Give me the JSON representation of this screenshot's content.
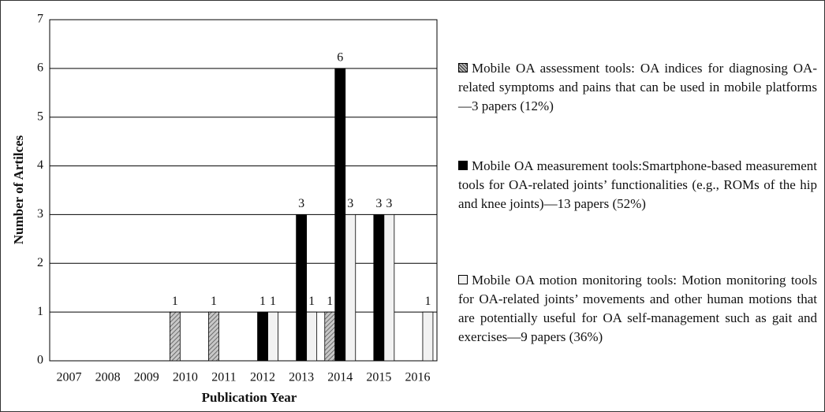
{
  "chart_data": {
    "type": "bar",
    "x_label": "Publication Year",
    "y_label": "Number of Artilces",
    "categories": [
      "2007",
      "2008",
      "2009",
      "2010",
      "2011",
      "2012",
      "2013",
      "2014",
      "2015",
      "2016"
    ],
    "series": [
      {
        "name": "Mobile OA assessment tools: OA indices for diagnosing OA-related symptoms and pains that can be used in mobile platforms—3 papers (12%)",
        "color": "#9a9a9a",
        "hatch": true,
        "values": [
          0,
          0,
          0,
          1,
          1,
          0,
          0,
          1,
          0,
          0
        ]
      },
      {
        "name": "Mobile OA measurement tools:Smartphone-based measurement tools for OA-related joints’ functionalities (e.g., ROMs of the hip and knee joints)—13 papers (52%)",
        "color": "#000000",
        "values": [
          0,
          0,
          0,
          0,
          0,
          1,
          3,
          6,
          3,
          0
        ]
      },
      {
        "name": "Mobile OA motion monitoring tools: Motion monitoring tools for OA-related joints’ movements and other human motions that are potentially useful for OA self-management such as gait and exercises—9 papers (36%)",
        "color": "#f2f2f2",
        "values": [
          0,
          0,
          0,
          0,
          0,
          1,
          1,
          3,
          3,
          1
        ]
      }
    ],
    "ylim": [
      0,
      7
    ],
    "yticks": [
      0,
      1,
      2,
      3,
      4,
      5,
      6,
      7
    ],
    "grid": true,
    "legend": "right"
  }
}
